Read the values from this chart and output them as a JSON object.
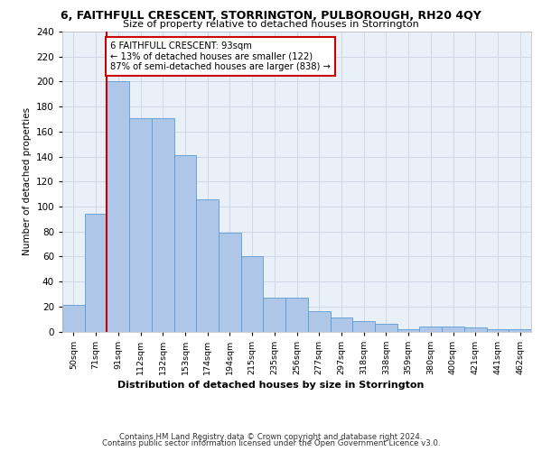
{
  "title": "6, FAITHFULL CRESCENT, STORRINGTON, PULBOROUGH, RH20 4QY",
  "subtitle": "Size of property relative to detached houses in Storrington",
  "xlabel": "Distribution of detached houses by size in Storrington",
  "ylabel": "Number of detached properties",
  "bar_labels": [
    "50sqm",
    "71sqm",
    "91sqm",
    "112sqm",
    "132sqm",
    "153sqm",
    "174sqm",
    "194sqm",
    "215sqm",
    "235sqm",
    "256sqm",
    "277sqm",
    "297sqm",
    "318sqm",
    "338sqm",
    "359sqm",
    "380sqm",
    "400sqm",
    "421sqm",
    "441sqm",
    "462sqm"
  ],
  "bar_values": [
    21,
    94,
    200,
    171,
    171,
    141,
    106,
    79,
    60,
    27,
    27,
    16,
    11,
    8,
    6,
    2,
    4,
    4,
    3,
    2,
    2
  ],
  "bar_color": "#aec6e8",
  "bar_edge_color": "#5b9bd5",
  "annotation_text": "6 FAITHFULL CRESCENT: 93sqm\n← 13% of detached houses are smaller (122)\n87% of semi-detached houses are larger (838) →",
  "annotation_box_color": "#ffffff",
  "annotation_box_edge": "#cc0000",
  "red_line_color": "#cc0000",
  "grid_color": "#d0d8e8",
  "background_color": "#eaf0f8",
  "ylim": [
    0,
    240
  ],
  "yticks": [
    0,
    20,
    40,
    60,
    80,
    100,
    120,
    140,
    160,
    180,
    200,
    220,
    240
  ],
  "footer_line1": "Contains HM Land Registry data © Crown copyright and database right 2024.",
  "footer_line2": "Contains public sector information licensed under the Open Government Licence v3.0."
}
